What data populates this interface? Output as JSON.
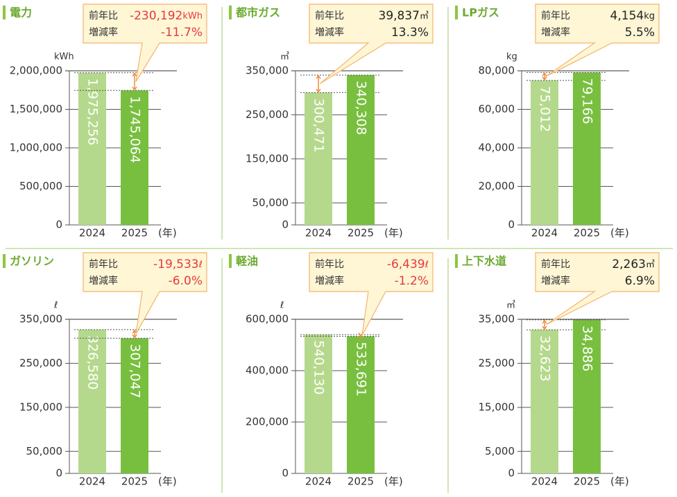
{
  "chart_data": [
    {
      "type": "bar",
      "title": "電力",
      "unit": "kWh",
      "categories": [
        "2024",
        "2025"
      ],
      "x_suffix": "(年)",
      "values": [
        1975256,
        1745064
      ],
      "value_labels": [
        "1,975,256",
        "1,745,064"
      ],
      "colors": [
        "#b5d98c",
        "#78bf3f"
      ],
      "ylim": [
        0,
        2000000
      ],
      "yticks": [
        0,
        {
          "value": 500000,
          "label": "500,000"
        },
        {
          "value": 1000000,
          "label": "1,000,000"
        },
        {
          "value": 1500000,
          "label": "1,500,000"
        },
        {
          "value": 2000000,
          "label": "2,000,000"
        }
      ],
      "callout": {
        "diff_label": "前年比",
        "diff": "-230,192",
        "diff_unit": "kWh",
        "rate_label": "増減率",
        "rate": "-11.7%",
        "color": "#e8383d"
      }
    },
    {
      "type": "bar",
      "title": "都市ガス",
      "unit": "㎥",
      "categories": [
        "2024",
        "2025"
      ],
      "x_suffix": "(年)",
      "values": [
        300471,
        340308
      ],
      "value_labels": [
        "300,471",
        "340,308"
      ],
      "colors": [
        "#b5d98c",
        "#78bf3f"
      ],
      "ylim": [
        0,
        350000
      ],
      "yticks": [
        0,
        {
          "value": 50000,
          "label": "50,000"
        },
        {
          "value": 150000,
          "label": "150,000"
        },
        {
          "value": 250000,
          "label": "250,000"
        },
        {
          "value": 350000,
          "label": "350,000"
        }
      ],
      "callout": {
        "diff_label": "前年比",
        "diff": "39,837",
        "diff_unit": "㎥",
        "rate_label": "増減率",
        "rate": "13.3%",
        "color": "#222222"
      }
    },
    {
      "type": "bar",
      "title": "LPガス",
      "unit": "kg",
      "categories": [
        "2024",
        "2025"
      ],
      "x_suffix": "(年)",
      "values": [
        75012,
        79166
      ],
      "value_labels": [
        "75,012",
        "79,166"
      ],
      "colors": [
        "#b5d98c",
        "#78bf3f"
      ],
      "ylim": [
        0,
        80000
      ],
      "yticks": [
        0,
        {
          "value": 20000,
          "label": "20,000"
        },
        {
          "value": 40000,
          "label": "40,000"
        },
        {
          "value": 60000,
          "label": "60,000"
        },
        {
          "value": 80000,
          "label": "80,000"
        }
      ],
      "callout": {
        "diff_label": "前年比",
        "diff": "4,154",
        "diff_unit": "kg",
        "rate_label": "増減率",
        "rate": "5.5%",
        "color": "#222222"
      }
    },
    {
      "type": "bar",
      "title": "ガソリン",
      "unit": "ℓ",
      "categories": [
        "2024",
        "2025"
      ],
      "x_suffix": "(年)",
      "values": [
        326580,
        307047
      ],
      "value_labels": [
        "326,580",
        "307,047"
      ],
      "colors": [
        "#b5d98c",
        "#78bf3f"
      ],
      "ylim": [
        0,
        350000
      ],
      "yticks": [
        0,
        {
          "value": 50000,
          "label": "50,000"
        },
        {
          "value": 150000,
          "label": "150,000"
        },
        {
          "value": 250000,
          "label": "250,000"
        },
        {
          "value": 350000,
          "label": "350,000"
        }
      ],
      "callout": {
        "diff_label": "前年比",
        "diff": "-19,533",
        "diff_unit": "ℓ",
        "rate_label": "増減率",
        "rate": "-6.0%",
        "color": "#e8383d"
      }
    },
    {
      "type": "bar",
      "title": "軽油",
      "unit": "ℓ",
      "categories": [
        "2024",
        "2025"
      ],
      "x_suffix": "(年)",
      "values": [
        540130,
        533691
      ],
      "value_labels": [
        "540,130",
        "533,691"
      ],
      "colors": [
        "#b5d98c",
        "#78bf3f"
      ],
      "ylim": [
        0,
        600000
      ],
      "yticks": [
        0,
        {
          "value": 200000,
          "label": "200,000"
        },
        {
          "value": 400000,
          "label": "400,000"
        },
        {
          "value": 600000,
          "label": "600,000"
        }
      ],
      "callout": {
        "diff_label": "前年比",
        "diff": "-6,439",
        "diff_unit": "ℓ",
        "rate_label": "増減率",
        "rate": "-1.2%",
        "color": "#e8383d"
      }
    },
    {
      "type": "bar",
      "title": "上下水道",
      "unit": "㎥",
      "categories": [
        "2024",
        "2025"
      ],
      "x_suffix": "(年)",
      "values": [
        32623,
        34886
      ],
      "value_labels": [
        "32,623",
        "34,886"
      ],
      "colors": [
        "#b5d98c",
        "#78bf3f"
      ],
      "ylim": [
        0,
        35000
      ],
      "yticks": [
        0,
        {
          "value": 5000,
          "label": "5,000"
        },
        {
          "value": 15000,
          "label": "15,000"
        },
        {
          "value": 25000,
          "label": "25,000"
        },
        {
          "value": 35000,
          "label": "35,000"
        }
      ],
      "callout": {
        "diff_label": "前年比",
        "diff": "2,263",
        "diff_unit": "㎥",
        "rate_label": "増減率",
        "rate": "6.9%",
        "color": "#222222"
      }
    }
  ]
}
